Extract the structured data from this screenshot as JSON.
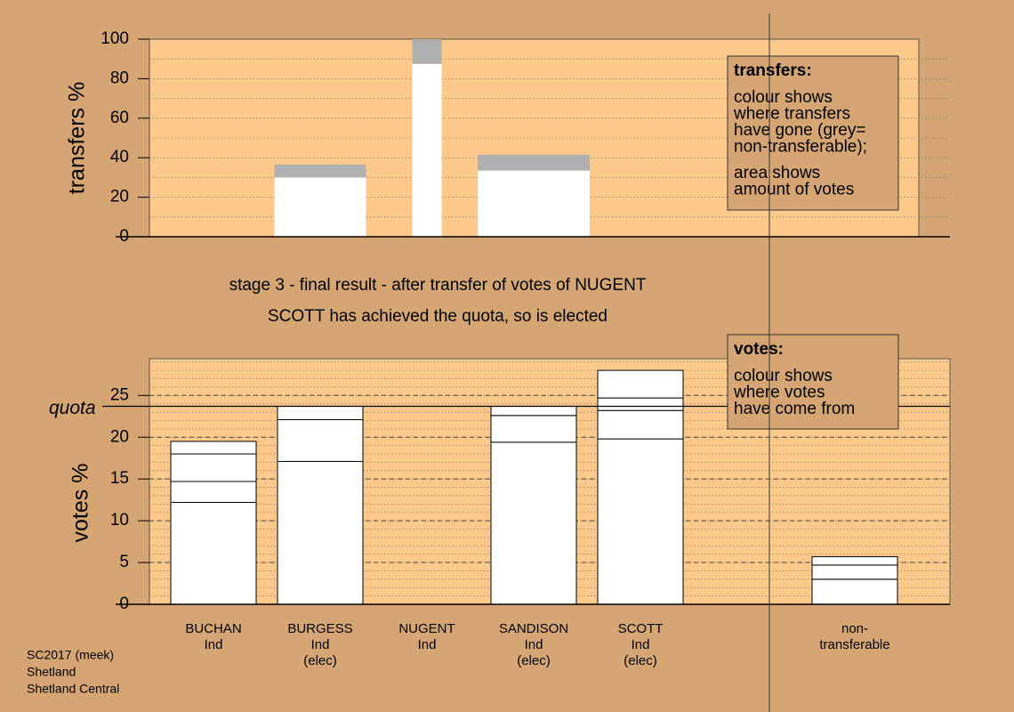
{
  "stage_title": "stage 3 - final result - after transfer of votes of NUGENT",
  "stage_note": "SCOTT has achieved the quota, so is elected",
  "footer": [
    "SC2017 (meek)",
    "Shetland",
    "Shetland Central"
  ],
  "chart_data": [
    {
      "type": "stacked-bar",
      "ylabel": "transfers %",
      "ylim": [
        0,
        100
      ],
      "yticks": [
        0,
        20,
        40,
        60,
        80,
        100
      ],
      "grid": true,
      "minor_grid_step": 10,
      "series": [
        {
          "color": "#ffffff",
          "values": [
            null,
            30,
            87.5,
            33.5,
            null,
            null
          ]
        },
        {
          "color": "#b0b0b0",
          "values": [
            null,
            6.5,
            12.5,
            8,
            null,
            null
          ]
        }
      ],
      "legend_note": {
        "title": "transfers:",
        "lines": [
          [
            "colour shows",
            "where transfers",
            "have gone (grey=",
            "non-transferable);"
          ],
          [
            "area shows",
            "amount of votes"
          ]
        ]
      }
    },
    {
      "type": "stacked-bar",
      "ylabel": "votes %",
      "ylim": [
        0,
        29.4
      ],
      "yticks": [
        0,
        5,
        10,
        15,
        20,
        25
      ],
      "grid": true,
      "minor_grid_step": 1,
      "categories": [
        [
          "BUCHAN",
          "Ind"
        ],
        [
          "BURGESS",
          "Ind",
          "(elec)"
        ],
        [
          "NUGENT",
          "Ind"
        ],
        [
          "SANDISON",
          "Ind",
          "(elec)"
        ],
        [
          "SCOTT",
          "Ind",
          "(elec)"
        ],
        [
          "non-",
          "transferable"
        ]
      ],
      "quota": {
        "value": 23.7,
        "label": "quota"
      },
      "series": [
        {
          "color": "#ffffff",
          "values": [
            12.2,
            17.1,
            null,
            19.4,
            19.8,
            3.0
          ]
        },
        {
          "color": "#ffffff",
          "values": [
            2.5,
            5.0,
            null,
            3.2,
            3.4,
            1.7
          ]
        },
        {
          "color": "#ffffff",
          "values": [
            3.3,
            1.6,
            null,
            1.1,
            1.5,
            1.0
          ]
        },
        {
          "color": "#ffffff",
          "values": [
            1.5,
            null,
            null,
            null,
            3.3,
            null
          ]
        }
      ],
      "legend_note": {
        "title": "votes:",
        "lines": [
          [
            "colour shows",
            "where votes",
            "have come from"
          ]
        ]
      }
    }
  ]
}
